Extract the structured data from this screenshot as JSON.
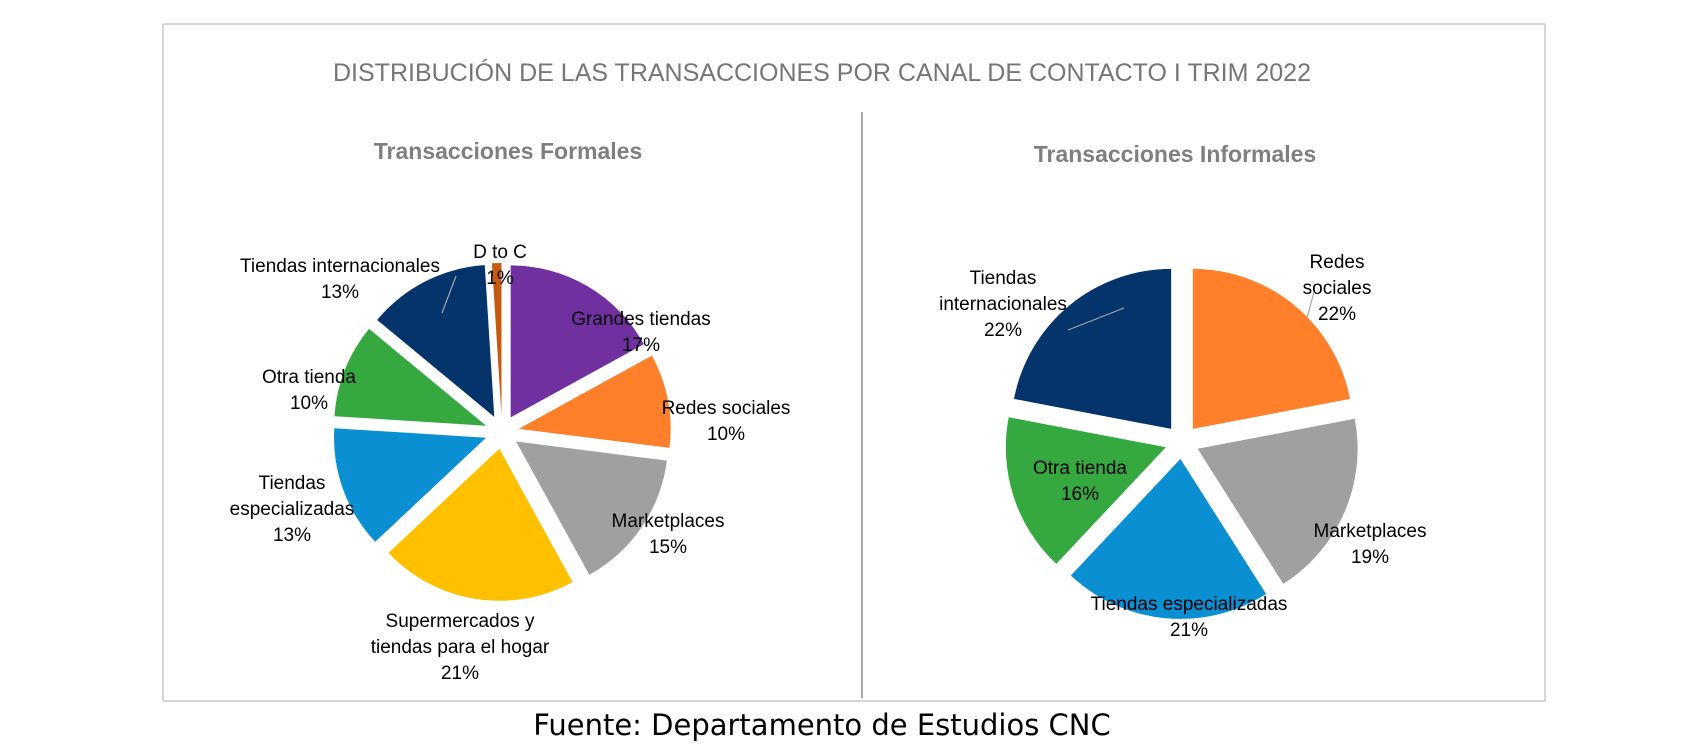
{
  "title": "DISTRIBUCIÓN DE LAS TRANSACCIONES  POR CANAL DE CONTACTO I TRIM 2022",
  "source": "Fuente: Departamento de Estudios CNC",
  "chart_data": [
    {
      "type": "pie",
      "title": "Transacciones Formales",
      "unit": "%",
      "slices": [
        {
          "name": "Grandes tiendas",
          "value": 17,
          "label": "17%",
          "color": "#7030A0"
        },
        {
          "name": "Redes sociales",
          "value": 10,
          "label": "10%",
          "color": "#FF7F2A"
        },
        {
          "name": "Marketplaces",
          "value": 15,
          "label": "15%",
          "color": "#A0A0A0"
        },
        {
          "name": "Supermercados y tiendas para el hogar",
          "value": 21,
          "label": "21%",
          "color": "#FFC000"
        },
        {
          "name": "Tiendas especializadas",
          "value": 13,
          "label": "13%",
          "color": "#0A8FD3"
        },
        {
          "name": "Otra tienda",
          "value": 10,
          "label": "10%",
          "color": "#35A940"
        },
        {
          "name": "Tiendas internacionales",
          "value": 13,
          "label": "13%",
          "color": "#05336B"
        },
        {
          "name": "D to C",
          "value": 1,
          "label": "1%",
          "color": "#C55A11"
        }
      ]
    },
    {
      "type": "pie",
      "title": "Transacciones Informales",
      "unit": "%",
      "slices": [
        {
          "name": "Redes sociales",
          "value": 22,
          "label": "22%",
          "color": "#FF7F2A"
        },
        {
          "name": "Marketplaces",
          "value": 19,
          "label": "19%",
          "color": "#A0A0A0"
        },
        {
          "name": "Tiendas especializadas",
          "value": 21,
          "label": "21%",
          "color": "#0A8FD3"
        },
        {
          "name": "Otra tienda",
          "value": 16,
          "label": "16%",
          "color": "#35A940"
        },
        {
          "name": "Tiendas internacionales",
          "value": 22,
          "label": "22%",
          "color": "#05336B"
        }
      ]
    }
  ]
}
